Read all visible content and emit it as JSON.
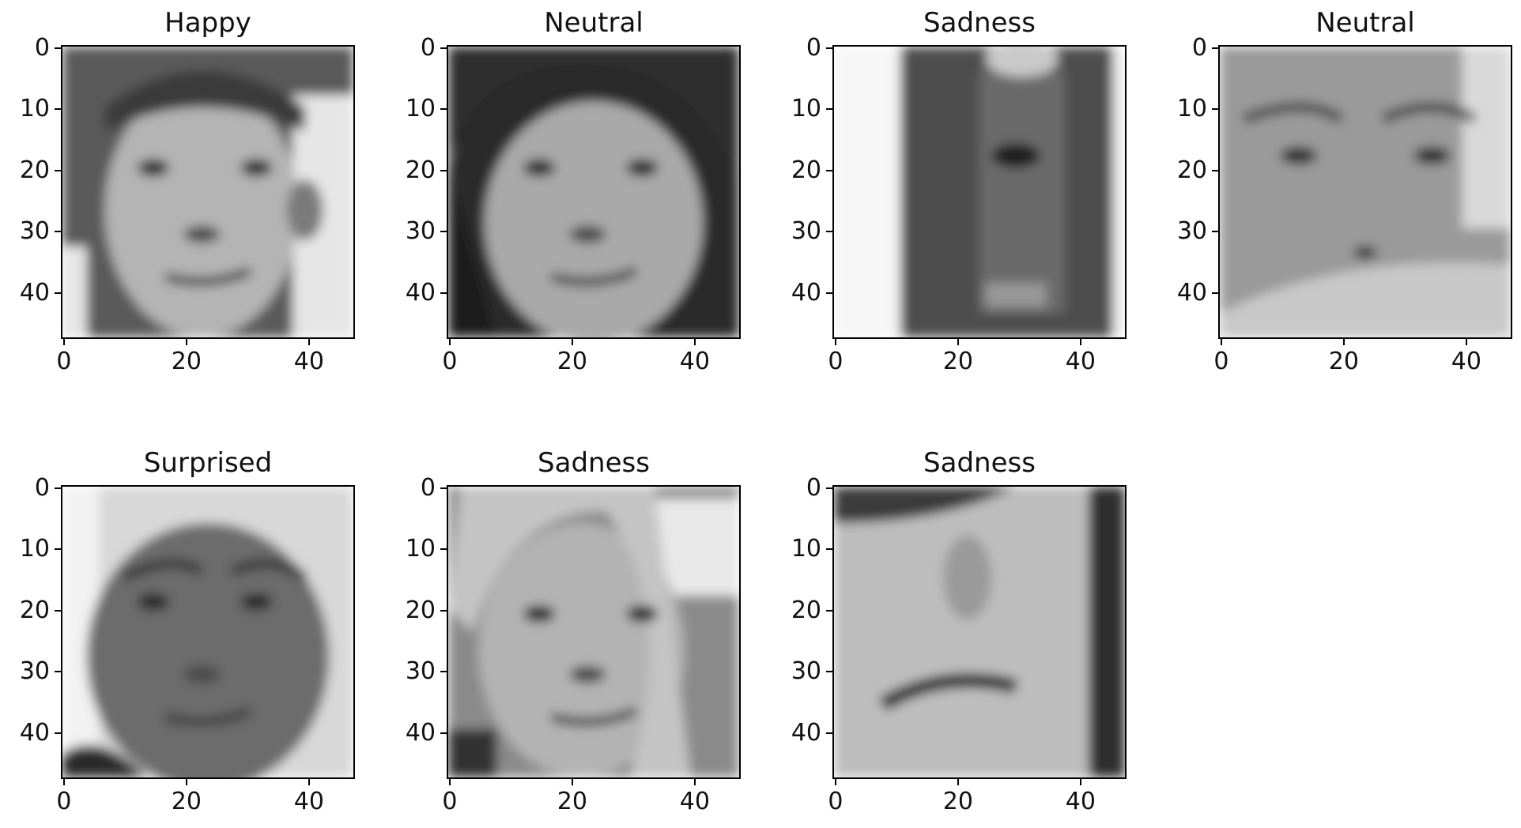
{
  "chart_data": [
    {
      "type": "image",
      "title": "Happy",
      "image_size": [
        48,
        48
      ],
      "xticks": [
        0,
        20,
        40
      ],
      "yticks": [
        0,
        10,
        20,
        30,
        40
      ],
      "xlim": [
        0,
        48
      ],
      "ylim": [
        48,
        0
      ],
      "colormap": "gray",
      "subject": "boy, slight smile",
      "tones": {
        "bg": "#5a5a5a",
        "face": "#b4b4b4",
        "light": "#e6e6e6"
      }
    },
    {
      "type": "image",
      "title": "Neutral",
      "image_size": [
        48,
        48
      ],
      "xticks": [
        0,
        20,
        40
      ],
      "yticks": [
        0,
        10,
        20,
        30,
        40
      ],
      "xlim": [
        0,
        48
      ],
      "ylim": [
        48,
        0
      ],
      "colormap": "gray",
      "subject": "girl with long dark hair",
      "tones": {
        "bg": "#2a2a2a",
        "face": "#a9a9a9",
        "light": "#f0f0f0"
      }
    },
    {
      "type": "image",
      "title": "Sadness",
      "image_size": [
        48,
        48
      ],
      "xticks": [
        0,
        20,
        40
      ],
      "yticks": [
        0,
        10,
        20,
        30,
        40
      ],
      "xlim": [
        0,
        48
      ],
      "ylim": [
        48,
        0
      ],
      "colormap": "gray",
      "subject": "blurred dark face, bright left edge",
      "tones": {
        "bg": "#efefef",
        "face": "#4e4e4e",
        "light": "#f7f7f7"
      }
    },
    {
      "type": "image",
      "title": "Neutral",
      "image_size": [
        48,
        48
      ],
      "xticks": [
        0,
        20,
        40
      ],
      "yticks": [
        0,
        10,
        20,
        30,
        40
      ],
      "xlim": [
        0,
        48
      ],
      "ylim": [
        48,
        0
      ],
      "colormap": "gray",
      "subject": "close-up face, hand covering mouth",
      "tones": {
        "bg": "#7b7b7b",
        "face": "#9a9a9a",
        "light": "#d9d9d9"
      }
    },
    {
      "type": "image",
      "title": "Surprised",
      "image_size": [
        48,
        48
      ],
      "xticks": [
        0,
        20,
        40
      ],
      "yticks": [
        0,
        10,
        20,
        30,
        40
      ],
      "xlim": [
        0,
        48
      ],
      "ylim": [
        48,
        0
      ],
      "colormap": "gray",
      "subject": "boy, round face",
      "tones": {
        "bg": "#d8d8d8",
        "face": "#6c6c6c",
        "light": "#f2f2f2"
      }
    },
    {
      "type": "image",
      "title": "Sadness",
      "image_size": [
        48,
        48
      ],
      "xticks": [
        0,
        20,
        40
      ],
      "yticks": [
        0,
        10,
        20,
        30,
        40
      ],
      "xlim": [
        0,
        48
      ],
      "ylim": [
        48,
        0
      ],
      "colormap": "gray",
      "subject": "girl with blond hair looking aside",
      "tones": {
        "bg": "#8a8a8a",
        "face": "#b3b3b3",
        "light": "#e8e8e8"
      }
    },
    {
      "type": "image",
      "title": "Sadness",
      "image_size": [
        48,
        48
      ],
      "xticks": [
        0,
        20,
        40
      ],
      "yticks": [
        0,
        10,
        20,
        30,
        40
      ],
      "xlim": [
        0,
        48
      ],
      "ylim": [
        48,
        0
      ],
      "colormap": "gray",
      "subject": "very close-up nose and mouth",
      "tones": {
        "bg": "#3a3a3a",
        "face": "#bdbdbd",
        "light": "#e0e0e0"
      }
    }
  ]
}
